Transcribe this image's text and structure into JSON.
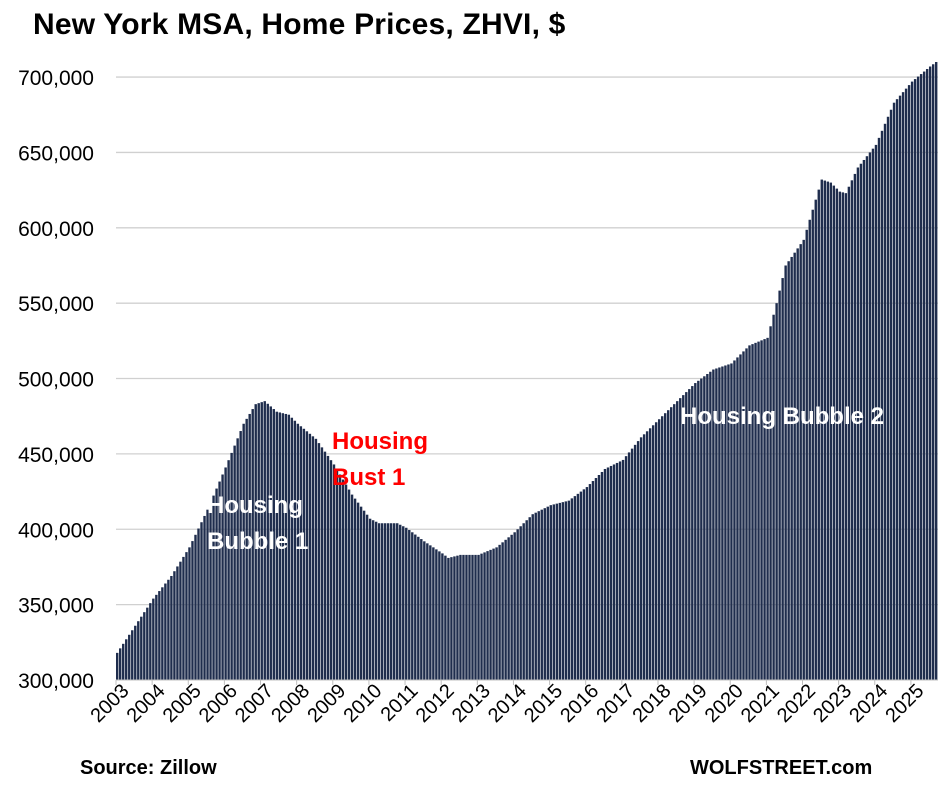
{
  "chart_data": {
    "type": "bar",
    "title": "New York MSA, Home Prices, ZHVI, $",
    "ylim": [
      300000,
      710000
    ],
    "y_ticks": [
      "300,000",
      "350,000",
      "400,000",
      "450,000",
      "500,000",
      "550,000",
      "600,000",
      "650,000",
      "700,000"
    ],
    "x_tick_labels": [
      "2003",
      "2004",
      "2005",
      "2006",
      "2007",
      "2008",
      "2009",
      "2010",
      "2011",
      "2012",
      "2013",
      "2014",
      "2015",
      "2016",
      "2017",
      "2018",
      "2019",
      "2020",
      "2021",
      "2022",
      "2023",
      "2024",
      "2025"
    ],
    "grid": "horizontal",
    "bar_color": "#1f2d4d",
    "series": [
      {
        "frequency": "monthly",
        "start": "2003-01",
        "end": "2025-09",
        "anchors": [
          [
            "2003-01",
            318000
          ],
          [
            "2003-07",
            336000
          ],
          [
            "2004-01",
            354000
          ],
          [
            "2004-07",
            369000
          ],
          [
            "2005-01",
            388000
          ],
          [
            "2005-07",
            413000
          ],
          [
            "2006-01",
            441000
          ],
          [
            "2006-07",
            470000
          ],
          [
            "2006-11",
            483000
          ],
          [
            "2007-02",
            485000
          ],
          [
            "2007-06",
            478000
          ],
          [
            "2007-10",
            476000
          ],
          [
            "2008-01",
            470000
          ],
          [
            "2008-07",
            460000
          ],
          [
            "2009-01",
            443000
          ],
          [
            "2009-07",
            423000
          ],
          [
            "2010-01",
            407000
          ],
          [
            "2010-04",
            404000
          ],
          [
            "2010-07",
            404000
          ],
          [
            "2010-10",
            404000
          ],
          [
            "2011-01",
            401000
          ],
          [
            "2011-07",
            392000
          ],
          [
            "2012-01",
            384000
          ],
          [
            "2012-03",
            381000
          ],
          [
            "2012-07",
            383000
          ],
          [
            "2013-01",
            383000
          ],
          [
            "2013-07",
            388000
          ],
          [
            "2014-01",
            398000
          ],
          [
            "2014-07",
            410000
          ],
          [
            "2015-01",
            416000
          ],
          [
            "2015-07",
            419000
          ],
          [
            "2016-01",
            428000
          ],
          [
            "2016-07",
            440000
          ],
          [
            "2017-01",
            446000
          ],
          [
            "2017-07",
            461000
          ],
          [
            "2018-01",
            473000
          ],
          [
            "2018-07",
            485000
          ],
          [
            "2019-01",
            497000
          ],
          [
            "2019-07",
            506000
          ],
          [
            "2020-01",
            510000
          ],
          [
            "2020-07",
            522000
          ],
          [
            "2021-01",
            527000
          ],
          [
            "2021-04",
            550000
          ],
          [
            "2021-07",
            575000
          ],
          [
            "2022-01",
            592000
          ],
          [
            "2022-07",
            632000
          ],
          [
            "2022-10",
            630000
          ],
          [
            "2023-01",
            624000
          ],
          [
            "2023-03",
            623000
          ],
          [
            "2023-07",
            640000
          ],
          [
            "2024-01",
            655000
          ],
          [
            "2024-07",
            683000
          ],
          [
            "2025-01",
            697000
          ],
          [
            "2025-07",
            707000
          ],
          [
            "2025-09",
            710000
          ]
        ]
      }
    ],
    "annotations": [
      {
        "id": "bubble1",
        "lines": [
          "Housing",
          "Bubble 1"
        ],
        "color": "#ffffff"
      },
      {
        "id": "bust1",
        "lines": [
          "Housing",
          "Bust 1"
        ],
        "color": "#ff0000"
      },
      {
        "id": "bubble2",
        "lines": [
          "Housing Bubble 2"
        ],
        "color": "#ffffff"
      }
    ],
    "source": "Source: Zillow",
    "brand": "WOLFSTREET.com"
  }
}
